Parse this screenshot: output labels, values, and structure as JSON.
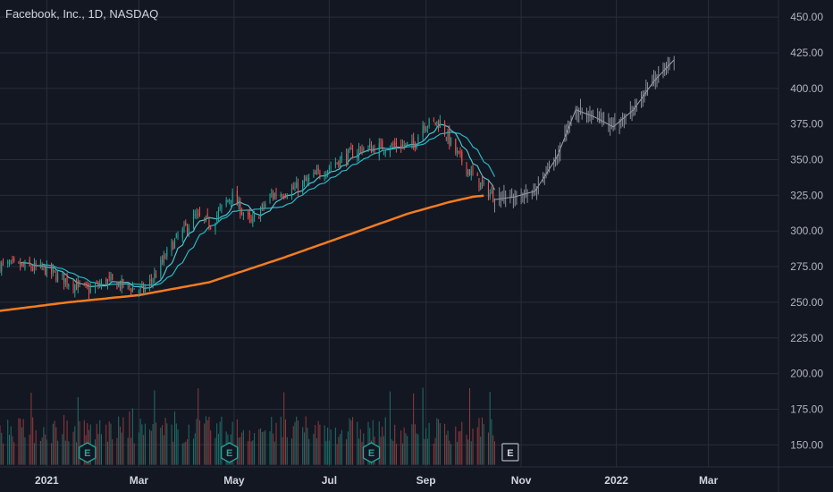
{
  "header": {
    "title": "Facebook, Inc., 1D, NASDAQ"
  },
  "colors": {
    "background": "#131722",
    "grid": "#2a2e39",
    "up": "#26a69a",
    "down": "#ef5350",
    "up_volume": "#1f6b66",
    "down_volume": "#8a3a3c",
    "sma_fast": "#4fc3d0",
    "sma_mid": "#26b8c6",
    "sma_slow": "#f57c20",
    "axis_text": "#b2b5be"
  },
  "earnings_markers": [
    {
      "label": "E",
      "date": "2021-01-27",
      "reported": true
    },
    {
      "label": "E",
      "date": "2021-04-28",
      "reported": true
    },
    {
      "label": "E",
      "date": "2021-07-28",
      "reported": true
    },
    {
      "label": "E",
      "date": "2021-10-25",
      "reported": false
    }
  ],
  "chart_data": {
    "type": "candlestick",
    "title": "Facebook, Inc., 1D, NASDAQ",
    "price_ticks": [
      "450.00",
      "425.00",
      "400.00",
      "375.00",
      "350.00",
      "325.00",
      "300.00",
      "275.00",
      "250.00",
      "225.00",
      "200.00",
      "175.00",
      "150.00"
    ],
    "price_range": [
      134.5,
      462
    ],
    "time_ticks": [
      {
        "label": "2021",
        "date": "2021-01-01"
      },
      {
        "label": "Mar",
        "date": "2021-03-01"
      },
      {
        "label": "May",
        "date": "2021-05-01"
      },
      {
        "label": "Jul",
        "date": "2021-07-01"
      },
      {
        "label": "Sep",
        "date": "2021-09-01"
      },
      {
        "label": "Nov",
        "date": "2021-11-01"
      },
      {
        "label": "2022",
        "date": "2022-01-01"
      },
      {
        "label": "Mar",
        "date": "2022-03-01"
      }
    ],
    "date_range": [
      "2020-12-02",
      "2022-03-31"
    ],
    "close_anchors": [
      [
        "2020-12-02",
        276
      ],
      [
        "2020-12-15",
        275
      ],
      [
        "2020-12-31",
        273
      ],
      [
        "2021-01-08",
        268
      ],
      [
        "2021-01-20",
        262
      ],
      [
        "2021-01-28",
        258
      ],
      [
        "2021-02-08",
        265
      ],
      [
        "2021-02-18",
        262
      ],
      [
        "2021-03-04",
        258
      ],
      [
        "2021-03-12",
        270
      ],
      [
        "2021-03-22",
        290
      ],
      [
        "2021-04-06",
        310
      ],
      [
        "2021-04-16",
        305
      ],
      [
        "2021-04-29",
        325
      ],
      [
        "2021-05-12",
        305
      ],
      [
        "2021-05-25",
        325
      ],
      [
        "2021-06-10",
        330
      ],
      [
        "2021-06-24",
        340
      ],
      [
        "2021-07-08",
        350
      ],
      [
        "2021-07-22",
        358
      ],
      [
        "2021-07-29",
        358
      ],
      [
        "2021-08-12",
        360
      ],
      [
        "2021-08-24",
        360
      ],
      [
        "2021-08-30",
        375
      ],
      [
        "2021-09-10",
        376
      ],
      [
        "2021-09-20",
        355
      ],
      [
        "2021-09-30",
        340
      ],
      [
        "2021-10-08",
        330
      ],
      [
        "2021-10-15",
        324
      ]
    ],
    "forecast_anchors": [
      [
        "2021-10-15",
        322
      ],
      [
        "2021-10-28",
        324
      ],
      [
        "2021-11-10",
        328
      ],
      [
        "2021-11-24",
        352
      ],
      [
        "2021-12-06",
        385
      ],
      [
        "2021-12-18",
        380
      ],
      [
        "2021-12-30",
        373
      ],
      [
        "2022-01-12",
        385
      ],
      [
        "2022-01-25",
        405
      ],
      [
        "2022-02-07",
        420
      ]
    ],
    "sma_slow_anchors": [
      [
        "2020-12-02",
        244
      ],
      [
        "2021-01-15",
        250
      ],
      [
        "2021-03-01",
        255
      ],
      [
        "2021-04-15",
        264
      ],
      [
        "2021-06-01",
        281
      ],
      [
        "2021-07-15",
        298
      ],
      [
        "2021-08-20",
        312
      ],
      [
        "2021-09-15",
        320
      ],
      [
        "2021-10-01",
        324
      ],
      [
        "2021-10-10",
        325
      ]
    ],
    "volume_scale": {
      "base_price": 136,
      "max_height_price": 212
    }
  }
}
